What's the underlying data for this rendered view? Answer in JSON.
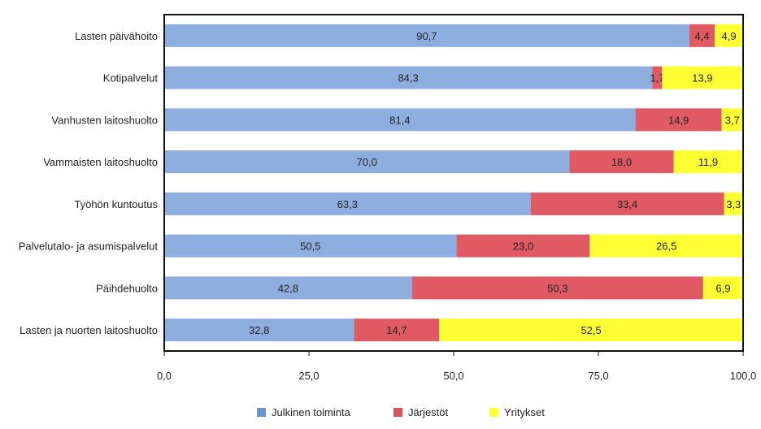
{
  "chart_data": {
    "type": "bar",
    "orientation": "horizontal",
    "stacked": true,
    "categories": [
      "Lasten päivähoito",
      "Kotipalvelut",
      "Vanhusten laitoshuolto",
      "Vammaisten laitoshuolto",
      "Työhön kuntoutus",
      "Palvelutalo- ja asumispalvelut",
      "Päihdehuolto",
      "Lasten ja nuorten laitoshuolto"
    ],
    "series": [
      {
        "name": "Julkinen toiminta",
        "color": "#8eaee0",
        "values": [
          90.7,
          84.3,
          81.4,
          70.0,
          63.3,
          50.5,
          42.8,
          32.8
        ],
        "labels": [
          "90,7",
          "84,3",
          "81,4",
          "70,0",
          "63,3",
          "50,5",
          "42,8",
          "32,8"
        ]
      },
      {
        "name": "Järjestöt",
        "color": "#e05a64",
        "values": [
          4.4,
          1.7,
          14.9,
          18.0,
          33.4,
          23.0,
          50.3,
          14.7
        ],
        "labels": [
          "4,4",
          "1,7",
          "14,9",
          "18,0",
          "33,4",
          "23,0",
          "50,3",
          "14,7"
        ]
      },
      {
        "name": "Yritykset",
        "color": "#ffff33",
        "values": [
          4.9,
          13.9,
          3.7,
          11.9,
          3.3,
          26.5,
          6.9,
          52.5
        ],
        "labels": [
          "4,9",
          "13,9",
          "3,7",
          "11,9",
          "3,3",
          "26,5",
          "6,9",
          "52,5"
        ]
      }
    ],
    "xlim": [
      0,
      100
    ],
    "xticks": [
      0,
      25,
      50,
      75,
      100
    ],
    "xtick_labels": [
      "0,0",
      "25,0",
      "50,0",
      "75,0",
      "100,0"
    ],
    "grid": false,
    "legend_position": "bottom"
  }
}
